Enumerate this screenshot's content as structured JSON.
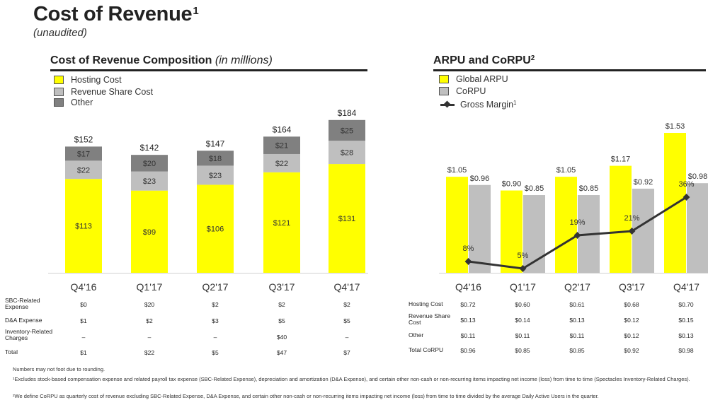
{
  "header": {
    "title": "Cost of Revenue",
    "title_sup": "1",
    "subtitle": "(unaudited)"
  },
  "left_section": {
    "title": "Cost of Revenue Composition",
    "title_italic": "(in millions)"
  },
  "right_section": {
    "title": "ARPU and CoRPU",
    "title_sup": "2"
  },
  "colors": {
    "yellow": "#FFFF00",
    "light_gray": "#BFBFBF",
    "dark_gray": "#808080",
    "line": "#333333"
  },
  "chart_data": [
    {
      "type": "bar",
      "stacked": true,
      "title": "Cost of Revenue Composition (in millions)",
      "categories": [
        "Q4'16",
        "Q1'17",
        "Q2'17",
        "Q3'17",
        "Q4'17"
      ],
      "series": [
        {
          "name": "Hosting Cost",
          "values": [
            113,
            99,
            106,
            121,
            131
          ],
          "labels": [
            "$113",
            "$99",
            "$106",
            "$121",
            "$131"
          ],
          "color": "#FFFF00"
        },
        {
          "name": "Revenue Share Cost",
          "values": [
            22,
            23,
            23,
            22,
            28
          ],
          "labels": [
            "$22",
            "$23",
            "$23",
            "$22",
            "$28"
          ],
          "color": "#BFBFBF"
        },
        {
          "name": "Other",
          "values": [
            17,
            20,
            18,
            21,
            25
          ],
          "labels": [
            "$17",
            "$20",
            "$18",
            "$21",
            "$25"
          ],
          "color": "#808080"
        }
      ],
      "totals": [
        152,
        142,
        147,
        164,
        184
      ],
      "total_labels": [
        "$152",
        "$142",
        "$147",
        "$164",
        "$184"
      ],
      "ylim": [
        0,
        200
      ]
    },
    {
      "type": "bar",
      "title": "ARPU and CoRPU",
      "categories": [
        "Q4'16",
        "Q1'17",
        "Q2'17",
        "Q3'17",
        "Q4'17"
      ],
      "series": [
        {
          "name": "Global ARPU",
          "values": [
            1.05,
            0.9,
            1.05,
            1.17,
            1.53
          ],
          "labels": [
            "$1.05",
            "$0.90",
            "$1.05",
            "$1.17",
            "$1.53"
          ],
          "color": "#FFFF00"
        },
        {
          "name": "CoRPU",
          "values": [
            0.96,
            0.85,
            0.85,
            0.92,
            0.98
          ],
          "labels": [
            "$0.96",
            "$0.85",
            "$0.85",
            "$0.92",
            "$0.98"
          ],
          "color": "#BFBFBF"
        }
      ],
      "line_series": {
        "name": "Gross Margin",
        "name_sup": "1",
        "values": [
          8,
          5,
          19,
          21,
          36
        ],
        "labels": [
          "8%",
          "5%",
          "19%",
          "21%",
          "36%"
        ],
        "unit": "%"
      },
      "ylim": [
        0,
        1.6
      ]
    }
  ],
  "left_table": {
    "rows": [
      {
        "label": "SBC-Related Expense",
        "values": [
          "$0",
          "$20",
          "$2",
          "$2",
          "$2"
        ]
      },
      {
        "label": "D&A Expense",
        "values": [
          "$1",
          "$2",
          "$3",
          "$5",
          "$5"
        ]
      },
      {
        "label": "Inventory-Related Charges",
        "values": [
          "–",
          "–",
          "–",
          "$40",
          "–"
        ]
      },
      {
        "label": "Total",
        "values": [
          "$1",
          "$22",
          "$5",
          "$47",
          "$7"
        ]
      }
    ]
  },
  "right_table": {
    "rows": [
      {
        "label": "Hosting Cost",
        "values": [
          "$0.72",
          "$0.60",
          "$0.61",
          "$0.68",
          "$0.70"
        ]
      },
      {
        "label": "Revenue Share Cost",
        "values": [
          "$0.13",
          "$0.14",
          "$0.13",
          "$0.12",
          "$0.15"
        ]
      },
      {
        "label": "Other",
        "values": [
          "$0.11",
          "$0.11",
          "$0.11",
          "$0.12",
          "$0.13"
        ]
      },
      {
        "label": "Total CoRPU",
        "values": [
          "$0.96",
          "$0.85",
          "$0.85",
          "$0.92",
          "$0.98"
        ]
      }
    ]
  },
  "footnotes": [
    "Numbers may not foot due to rounding.",
    "¹Excludes stock-based compensation expense and related payroll tax expense (SBC-Related Expense), depreciation and amortization (D&A Expense), and certain other non-cash or non-recurring items impacting net income (loss) from time to time (Spectacles Inventory-Related Charges).",
    "²We define CoRPU as quarterly cost of revenue excluding SBC-Related Expense, D&A Expense, and certain other non-cash or non-recurring items impacting net income (loss) from time to time divided by the average Daily Active Users in the quarter."
  ]
}
